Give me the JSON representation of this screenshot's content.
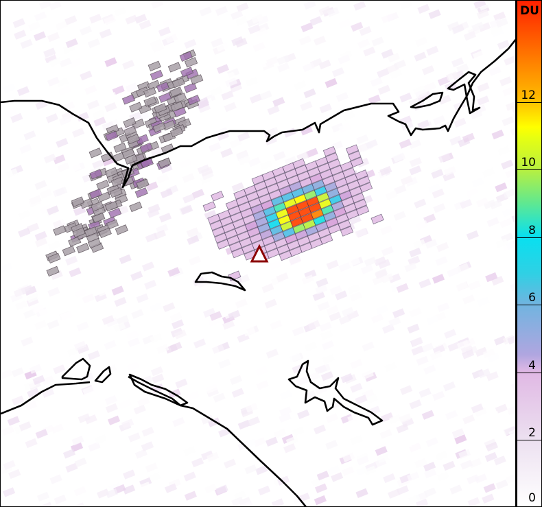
{
  "colorbar": {
    "unit": "DU",
    "min": 0,
    "max": 15,
    "ticks": [
      0,
      2,
      4,
      6,
      8,
      10,
      12
    ],
    "tick_labels": [
      "0",
      "2",
      "4",
      "6",
      "8",
      "10",
      "12"
    ]
  },
  "colors": {
    "coastline": "#000000",
    "marker_outline": "#8b0000",
    "marker_fill": "#ffffff",
    "masked_pixels": "#a9a0a8"
  },
  "marker": {
    "icon": "triangle-icon"
  }
}
